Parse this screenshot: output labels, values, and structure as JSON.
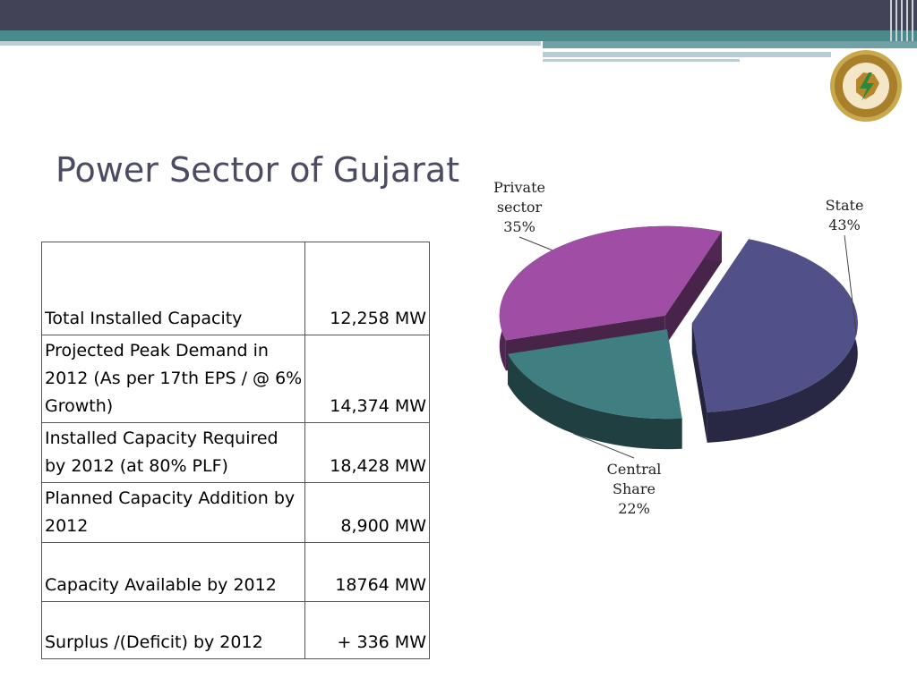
{
  "slide": {
    "title": "Power Sector of Gujarat"
  },
  "table": {
    "rows": [
      {
        "label": "Total Installed Capacity",
        "value": "12,258 MW"
      },
      {
        "label": "Projected Peak Demand in 2012 (As per 17th EPS / @ 6% Growth)",
        "value": "14,374 MW"
      },
      {
        "label": "Installed Capacity Required by 2012 (at 80% PLF)",
        "value": "18,428 MW"
      },
      {
        "label": "Planned Capacity Addition by 2012",
        "value": "8,900 MW"
      },
      {
        "label": "Capacity Available by 2012",
        "value": "18764 MW"
      },
      {
        "label": "Surplus /(Deficit) by 2012",
        "value": "+ 336 MW"
      }
    ]
  },
  "chart_data": {
    "type": "pie",
    "labels": [
      "State",
      "Central Share",
      "Private sector"
    ],
    "values": [
      43,
      22,
      35
    ],
    "unit": "%",
    "colors": [
      "#515088",
      "#3f7e81",
      "#a04ea5"
    ],
    "data_labels": [
      {
        "lines": [
          "State",
          "43%"
        ]
      },
      {
        "lines": [
          "Central",
          "Share",
          "22%"
        ]
      },
      {
        "lines": [
          "Private",
          "sector",
          "35%"
        ]
      }
    ]
  },
  "icons": {
    "logo": "gujarat-electricity-regulatory-commission-seal"
  }
}
